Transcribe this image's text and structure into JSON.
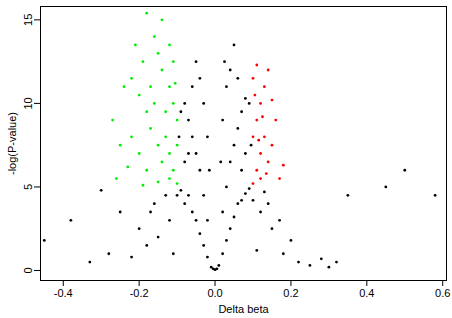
{
  "chart_data": {
    "type": "scatter",
    "x_label": "Delta beta",
    "y_label": "-log(P-value)",
    "xlim": [
      -0.46,
      0.61
    ],
    "ylim": [
      -0.6,
      15.8
    ],
    "xticks": [
      -0.4,
      -0.2,
      {
        "value": 0,
        "label": "0.0"
      },
      0.2,
      0.4,
      0.6
    ],
    "yticks": [
      0,
      5,
      10,
      15
    ],
    "grid": false,
    "marker": "circle",
    "series": [
      {
        "color": "#000000",
        "x": [
          -0.01,
          0.01,
          -0.02,
          0.02,
          -0.03,
          0.03,
          -0.04,
          0.04,
          -0.05,
          0.05,
          -0.06,
          0.06,
          -0.07,
          0.07,
          -0.08,
          0.08,
          -0.09,
          0.09,
          -0.02,
          0.02,
          -0.03,
          0.03,
          -0.04,
          0.04,
          -0.05,
          0.05,
          -0.06,
          0.06,
          -0.07,
          0.07,
          -0.08,
          0.08,
          -0.09,
          0.09,
          -0.015,
          0.015,
          -0.02,
          0.02,
          -0.03,
          0.03,
          -0.04,
          0.04,
          -0.05,
          0.05,
          0.025,
          -0.06,
          0.06,
          -0.07,
          0.07,
          -0.08,
          0.08,
          -0.095,
          0.095,
          -0.1,
          0.1,
          -0.12,
          0.12,
          -0.15,
          0.15,
          -0.18,
          0.18,
          -0.2,
          0.2,
          -0.22,
          0.22,
          -0.25,
          0.25,
          -0.28,
          0.28,
          -0.3,
          0.3,
          0.32,
          -0.33,
          -0.13,
          0.13,
          -0.16,
          0.14,
          -0.11,
          0.11,
          0.35,
          0.45,
          0.5,
          0.58,
          -0.45,
          -0.38,
          0.17,
          -0.17,
          0,
          -0.005,
          0.005
        ],
        "y": [
          0.2,
          0.3,
          0.8,
          1.0,
          1.5,
          1.8,
          2.2,
          2.5,
          3,
          3.2,
          3.5,
          4,
          4.5,
          4.2,
          4,
          4.6,
          4.8,
          4.9,
          3,
          3.5,
          4.5,
          5,
          6,
          6.5,
          7,
          7.5,
          8,
          8.5,
          9,
          9.5,
          10,
          10.3,
          9.5,
          10,
          6,
          6.5,
          8,
          9,
          10,
          11,
          11.5,
          12,
          12.5,
          13.5,
          12.5,
          11,
          11.5,
          7,
          6,
          6.5,
          7,
          8,
          7.5,
          4.5,
          4.2,
          3,
          3.5,
          2,
          2.5,
          1.5,
          1,
          2.5,
          1.8,
          0.8,
          0.5,
          3.5,
          0.3,
          1,
          0.7,
          4.8,
          0.2,
          0.5,
          0.5,
          4.5,
          4.7,
          4,
          4,
          1,
          1.2,
          4.5,
          5,
          6,
          4.5,
          1.8,
          3,
          3,
          3.5,
          0.05,
          0.1,
          0.1
        ]
      },
      {
        "color": "#00ee00",
        "x": [
          -0.1,
          -0.11,
          -0.12,
          -0.13,
          -0.1,
          -0.11,
          -0.12,
          -0.14,
          -0.15,
          -0.16,
          -0.18,
          -0.12,
          -0.14,
          -0.15,
          -0.17,
          -0.18,
          -0.2,
          -0.22,
          -0.24,
          -0.13,
          -0.16,
          -0.19,
          -0.21,
          -0.15,
          -0.18,
          -0.2,
          -0.22,
          -0.25,
          -0.27,
          -0.23,
          -0.11,
          -0.12,
          -0.14,
          -0.17,
          -0.26,
          -0.1,
          -0.105,
          -0.19
        ],
        "y": [
          5.2,
          6,
          7,
          8,
          9,
          10,
          11,
          12,
          13,
          14,
          15.4,
          5.5,
          6.5,
          7.5,
          8.5,
          9.5,
          10.5,
          11.5,
          11,
          9.5,
          10,
          12.5,
          13.5,
          5.3,
          6,
          7,
          8,
          7.5,
          9,
          6.2,
          12.5,
          13.5,
          15,
          11,
          5.5,
          7.5,
          11.2,
          5.1
        ]
      },
      {
        "color": "#ff0000",
        "x": [
          0.1,
          0.11,
          0.12,
          0.1,
          0.11,
          0.12,
          0.13,
          0.14,
          0.105,
          0.13,
          0.14,
          0.15,
          0.16,
          0.17,
          0.12,
          0.115,
          0.125,
          0.135,
          0.15,
          0.18,
          0.1,
          0.11
        ],
        "y": [
          5.2,
          6,
          7,
          8,
          9,
          10,
          11,
          12,
          10.5,
          8,
          6.5,
          7.5,
          9,
          5.5,
          5.5,
          7.8,
          9.2,
          5.8,
          10.2,
          6.3,
          11.5,
          12.3
        ]
      }
    ]
  }
}
